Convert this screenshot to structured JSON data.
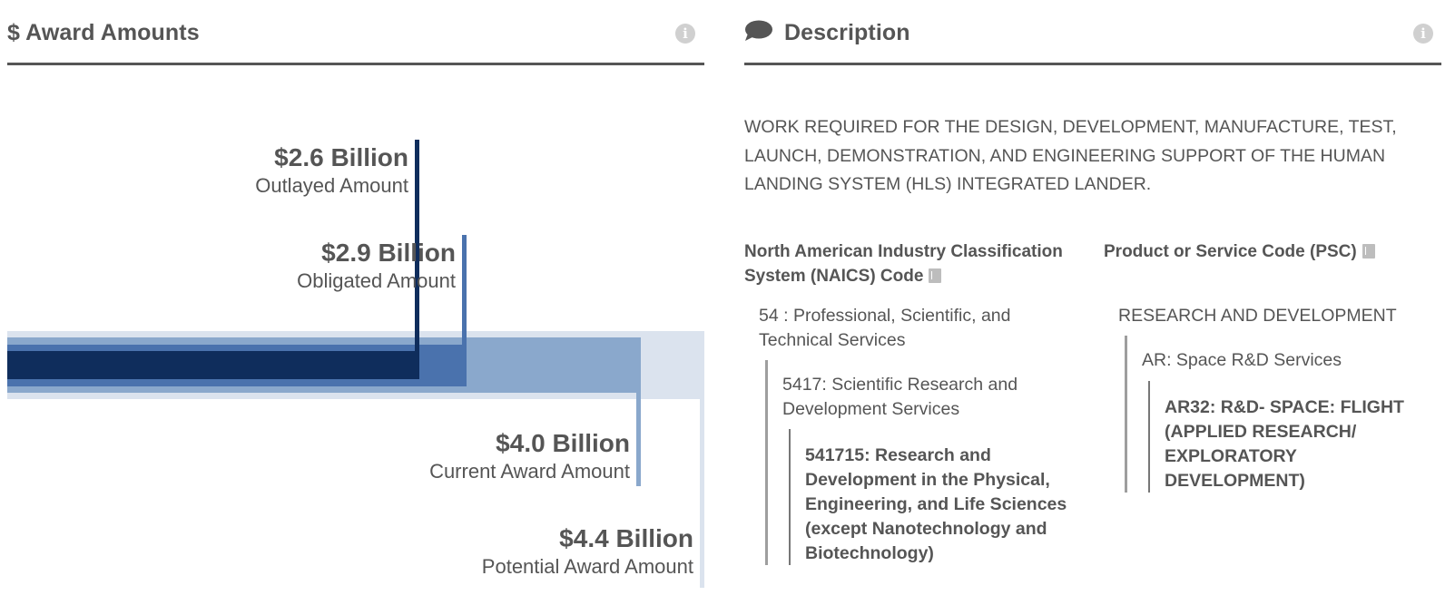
{
  "award_panel": {
    "title": "$ Award Amounts",
    "info_icon": "info-icon"
  },
  "description_panel": {
    "title": "Description",
    "title_icon": "speech-bubble-icon",
    "info_icon": "info-icon",
    "text": "WORK REQUIRED FOR THE DESIGN, DEVELOPMENT, MANUFACTURE, TEST, LAUNCH, DEMONSTRATION, AND ENGINEERING SUPPORT OF THE HUMAN LANDING SYSTEM (HLS) INTEGRATED LANDER."
  },
  "amounts": [
    {
      "key": "outlayed",
      "value": "$2.6 Billion",
      "label": "Outlayed Amount",
      "billions": 2.6,
      "color": "#0f2d5c"
    },
    {
      "key": "obligated",
      "value": "$2.9 Billion",
      "label": "Obligated Amount",
      "billions": 2.9,
      "color": "#4a72ad"
    },
    {
      "key": "current",
      "value": "$4.0 Billion",
      "label": "Current Award Amount",
      "billions": 4.0,
      "color": "#8aa8cc"
    },
    {
      "key": "potential",
      "value": "$4.4 Billion",
      "label": "Potential Award Amount",
      "billions": 4.4,
      "color": "#dbe3ee"
    }
  ],
  "naics": {
    "heading_line1": "North American Industry Classification",
    "heading_line2": "System (NAICS)  Code",
    "heading_icon": "glossary-book-icon",
    "level1_line1": "54 : Professional, Scientific, and",
    "level1_line2": "Technical Services",
    "level2_line1": "5417: Scientific Research and",
    "level2_line2": "Development Services",
    "level3_lines": [
      "541715: Research and",
      "Development in the Physical,",
      "Engineering, and Life Sciences",
      "(except Nanotechnology and",
      "Biotechnology)"
    ]
  },
  "psc": {
    "heading": "Product or Service Code  (PSC)",
    "heading_icon": "glossary-book-icon",
    "level1": "RESEARCH AND DEVELOPMENT",
    "level2": "AR: Space R&D Services",
    "level3_lines": [
      "AR32: R&D- SPACE: FLIGHT",
      "(APPLIED RESEARCH/",
      "EXPLORATORY",
      "DEVELOPMENT)"
    ]
  }
}
